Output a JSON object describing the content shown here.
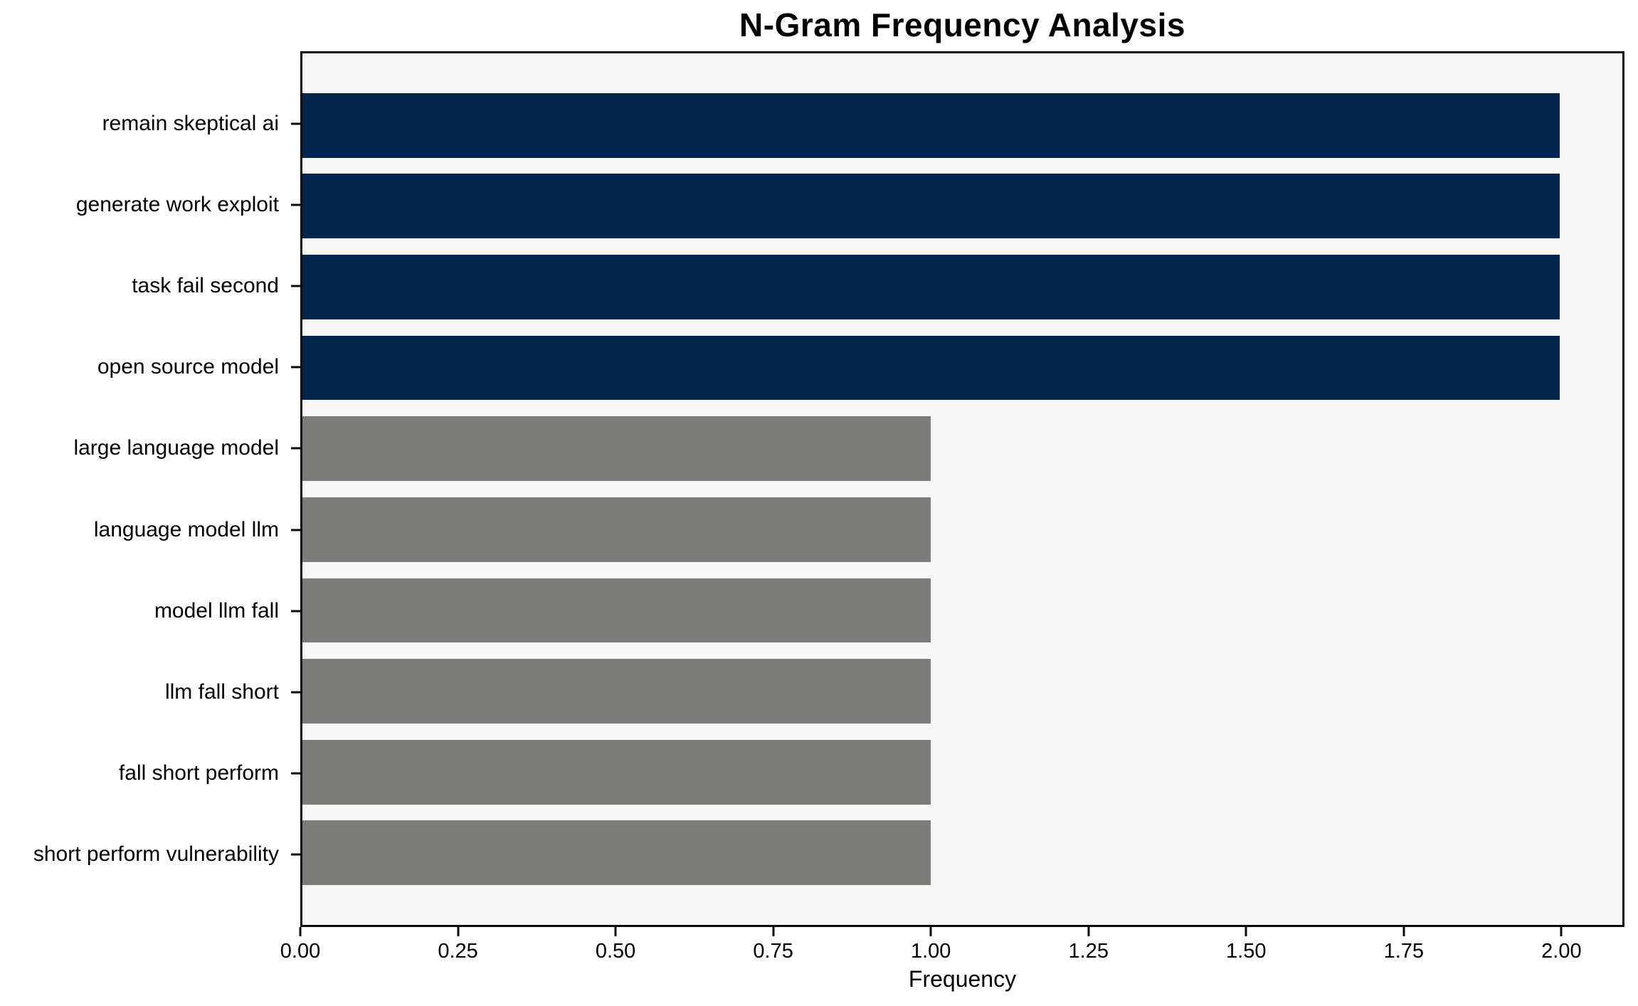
{
  "figure": {
    "background": "#ffffff",
    "plot_background": "#f7f7f7",
    "spine_color": "#0c0c0c",
    "text_color": "#000000"
  },
  "chart_data": {
    "type": "bar",
    "orientation": "horizontal",
    "title": "N-Gram Frequency Analysis",
    "xlabel": "Frequency",
    "ylabel": "",
    "categories": [
      "remain skeptical ai",
      "generate work exploit",
      "task fail second",
      "open source model",
      "large language model",
      "language model llm",
      "model llm fall",
      "llm fall short",
      "fall short perform",
      "short perform vulnerability"
    ],
    "values": [
      2,
      2,
      2,
      2,
      1,
      1,
      1,
      1,
      1,
      1
    ],
    "bar_colors": [
      "#02254d",
      "#02254d",
      "#02254d",
      "#02254d",
      "#7c7c79",
      "#7c7c79",
      "#7c7c79",
      "#7c7c79",
      "#7c7c79",
      "#7c7c79"
    ],
    "xlim": [
      0,
      2.1
    ],
    "x_tick_values": [
      0,
      0.25,
      0.5,
      0.75,
      1,
      1.25,
      1.5,
      1.75,
      2
    ],
    "x_tick_labels": [
      "0.00",
      "0.25",
      "0.50",
      "0.75",
      "1.00",
      "1.25",
      "1.50",
      "1.75",
      "2.00"
    ],
    "grid": false,
    "legend": null,
    "bar_half_units": 0.4,
    "y_pad_units": 0.89
  }
}
